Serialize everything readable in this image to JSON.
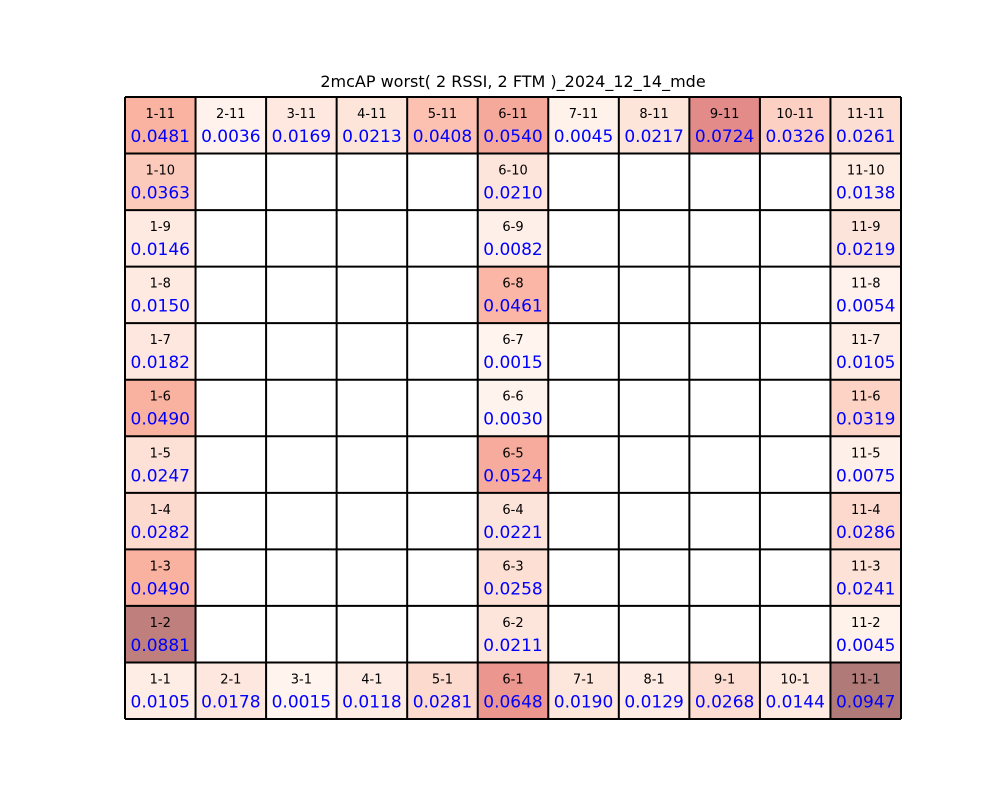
{
  "chart_data": {
    "type": "heatmap",
    "title": "2mcAP worst( 2 RSSI, 2 FTM )_2024_12_14_mde",
    "grid": {
      "columns": 11,
      "rows": 11
    },
    "color_scale": {
      "min": 0.0,
      "max": 0.0947,
      "low_color": "#fff5f0",
      "high_color": "#b07a78"
    },
    "value_text_color": "#0000ff",
    "label_text_color": "#000000",
    "cells": [
      {
        "label": "1-11",
        "col": 1,
        "row": 11,
        "value": 0.0481
      },
      {
        "label": "2-11",
        "col": 2,
        "row": 11,
        "value": 0.0036
      },
      {
        "label": "3-11",
        "col": 3,
        "row": 11,
        "value": 0.0169
      },
      {
        "label": "4-11",
        "col": 4,
        "row": 11,
        "value": 0.0213
      },
      {
        "label": "5-11",
        "col": 5,
        "row": 11,
        "value": 0.0408
      },
      {
        "label": "6-11",
        "col": 6,
        "row": 11,
        "value": 0.054
      },
      {
        "label": "7-11",
        "col": 7,
        "row": 11,
        "value": 0.0045
      },
      {
        "label": "8-11",
        "col": 8,
        "row": 11,
        "value": 0.0217
      },
      {
        "label": "9-11",
        "col": 9,
        "row": 11,
        "value": 0.0724
      },
      {
        "label": "10-11",
        "col": 10,
        "row": 11,
        "value": 0.0326
      },
      {
        "label": "11-11",
        "col": 11,
        "row": 11,
        "value": 0.0261
      },
      {
        "label": "1-10",
        "col": 1,
        "row": 10,
        "value": 0.0363
      },
      {
        "label": "6-10",
        "col": 6,
        "row": 10,
        "value": 0.021
      },
      {
        "label": "11-10",
        "col": 11,
        "row": 10,
        "value": 0.0138
      },
      {
        "label": "1-9",
        "col": 1,
        "row": 9,
        "value": 0.0146
      },
      {
        "label": "6-9",
        "col": 6,
        "row": 9,
        "value": 0.0082
      },
      {
        "label": "11-9",
        "col": 11,
        "row": 9,
        "value": 0.0219
      },
      {
        "label": "1-8",
        "col": 1,
        "row": 8,
        "value": 0.015
      },
      {
        "label": "6-8",
        "col": 6,
        "row": 8,
        "value": 0.0461
      },
      {
        "label": "11-8",
        "col": 11,
        "row": 8,
        "value": 0.0054
      },
      {
        "label": "1-7",
        "col": 1,
        "row": 7,
        "value": 0.0182
      },
      {
        "label": "6-7",
        "col": 6,
        "row": 7,
        "value": 0.0015
      },
      {
        "label": "11-7",
        "col": 11,
        "row": 7,
        "value": 0.0105
      },
      {
        "label": "1-6",
        "col": 1,
        "row": 6,
        "value": 0.049
      },
      {
        "label": "6-6",
        "col": 6,
        "row": 6,
        "value": 0.003
      },
      {
        "label": "11-6",
        "col": 11,
        "row": 6,
        "value": 0.0319
      },
      {
        "label": "1-5",
        "col": 1,
        "row": 5,
        "value": 0.0247
      },
      {
        "label": "6-5",
        "col": 6,
        "row": 5,
        "value": 0.0524
      },
      {
        "label": "11-5",
        "col": 11,
        "row": 5,
        "value": 0.0075
      },
      {
        "label": "1-4",
        "col": 1,
        "row": 4,
        "value": 0.0282
      },
      {
        "label": "6-4",
        "col": 6,
        "row": 4,
        "value": 0.0221
      },
      {
        "label": "11-4",
        "col": 11,
        "row": 4,
        "value": 0.0286
      },
      {
        "label": "1-3",
        "col": 1,
        "row": 3,
        "value": 0.049
      },
      {
        "label": "6-3",
        "col": 6,
        "row": 3,
        "value": 0.0258
      },
      {
        "label": "11-3",
        "col": 11,
        "row": 3,
        "value": 0.0241
      },
      {
        "label": "1-2",
        "col": 1,
        "row": 2,
        "value": 0.0881
      },
      {
        "label": "6-2",
        "col": 6,
        "row": 2,
        "value": 0.0211
      },
      {
        "label": "11-2",
        "col": 11,
        "row": 2,
        "value": 0.0045
      },
      {
        "label": "1-1",
        "col": 1,
        "row": 1,
        "value": 0.0105
      },
      {
        "label": "2-1",
        "col": 2,
        "row": 1,
        "value": 0.0178
      },
      {
        "label": "3-1",
        "col": 3,
        "row": 1,
        "value": 0.0015
      },
      {
        "label": "4-1",
        "col": 4,
        "row": 1,
        "value": 0.0118
      },
      {
        "label": "5-1",
        "col": 5,
        "row": 1,
        "value": 0.0281
      },
      {
        "label": "6-1",
        "col": 6,
        "row": 1,
        "value": 0.0648
      },
      {
        "label": "7-1",
        "col": 7,
        "row": 1,
        "value": 0.019
      },
      {
        "label": "8-1",
        "col": 8,
        "row": 1,
        "value": 0.0129
      },
      {
        "label": "9-1",
        "col": 9,
        "row": 1,
        "value": 0.0268
      },
      {
        "label": "10-1",
        "col": 10,
        "row": 1,
        "value": 0.0144
      },
      {
        "label": "11-1",
        "col": 11,
        "row": 1,
        "value": 0.0947
      }
    ]
  }
}
